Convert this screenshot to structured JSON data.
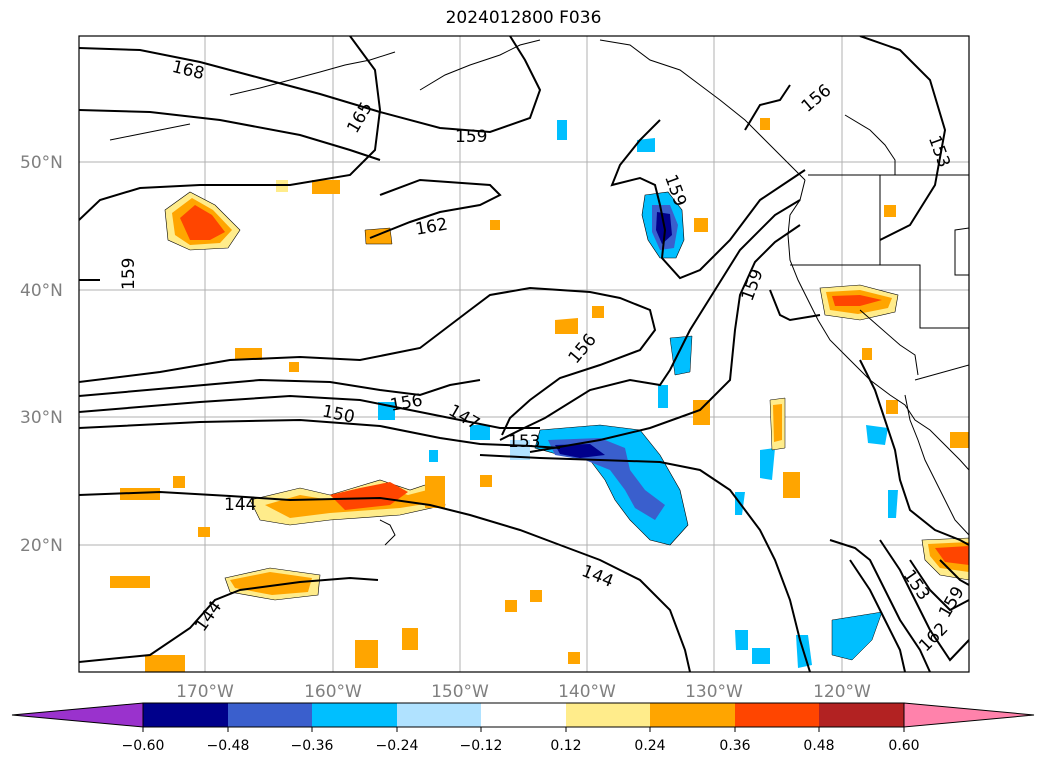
{
  "title": "2024012800 F036",
  "lat_labels": [
    "50°N",
    "40°N",
    "30°N",
    "20°N"
  ],
  "lon_labels": [
    "170°W",
    "160°W",
    "150°W",
    "140°W",
    "130°W",
    "120°W"
  ],
  "colorbar": {
    "ticks": [
      "−0.60",
      "−0.48",
      "−0.36",
      "−0.24",
      "−0.12",
      "0.12",
      "0.24",
      "0.36",
      "0.48",
      "0.60"
    ],
    "colors": [
      "#9a32cd",
      "#00008b",
      "#3a5fcd",
      "#00bfff",
      "#b0e2ff",
      "#ffffff",
      "#ffec8b",
      "#ffa500",
      "#ff4500",
      "#b22222",
      "#ff82ab"
    ]
  },
  "contour_labels": [
    "168",
    "165",
    "159",
    "159",
    "162",
    "159",
    "159",
    "153",
    "156",
    "156",
    "150",
    "156",
    "147",
    "153",
    "144",
    "144",
    "144",
    "153",
    "159",
    "162"
  ]
}
